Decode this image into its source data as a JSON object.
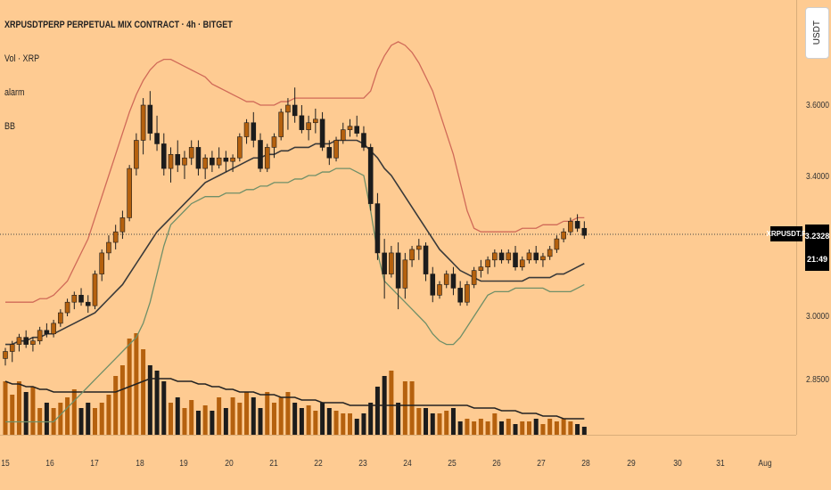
{
  "legend": {
    "title": "XRPUSDTPERP PERPETUAL MIX CONTRACT · 4h · BITGET",
    "vol": "Vol · XRP",
    "alarm": "alarm",
    "bb": "BB"
  },
  "axis": {
    "currency": "USDT",
    "price_labels": [
      "3.6000",
      "3.4000",
      "3.0000",
      "2.8500"
    ],
    "symbol_tag": "XRPUSDT.P",
    "last_price": "3.2328",
    "countdown": "21:49",
    "date_labels": [
      "15",
      "16",
      "17",
      "18",
      "19",
      "20",
      "21",
      "22",
      "23",
      "24",
      "25",
      "26",
      "27",
      "28",
      "29",
      "30",
      "31",
      "Aug"
    ]
  },
  "colors": {
    "background": "#fecb92",
    "bull": "#b5610e",
    "bear": "#1c1c1c",
    "bb_upper": "#d06a58",
    "bb_lower": "#6f8f68",
    "bb_basis": "#3a3a3a"
  },
  "chart_data": {
    "type": "candlestick",
    "timeframe": "4h",
    "y_ticks": [
      3.6,
      3.4,
      3.0,
      2.85
    ],
    "last_price": 3.2328,
    "x_ticks": [
      "15",
      "16",
      "17",
      "18",
      "19",
      "20",
      "21",
      "22",
      "23",
      "24",
      "25",
      "26",
      "27",
      "28",
      "29",
      "30",
      "31",
      "Aug"
    ],
    "candles": [
      [
        2.88,
        2.91,
        2.86,
        2.9
      ],
      [
        2.9,
        2.93,
        2.87,
        2.92
      ],
      [
        2.92,
        2.95,
        2.9,
        2.94
      ],
      [
        2.94,
        2.96,
        2.91,
        2.92
      ],
      [
        2.92,
        2.94,
        2.9,
        2.93
      ],
      [
        2.93,
        2.97,
        2.92,
        2.96
      ],
      [
        2.96,
        2.98,
        2.94,
        2.95
      ],
      [
        2.95,
        2.99,
        2.94,
        2.98
      ],
      [
        2.98,
        3.02,
        2.97,
        3.01
      ],
      [
        3.01,
        3.05,
        3.0,
        3.04
      ],
      [
        3.04,
        3.07,
        3.02,
        3.06
      ],
      [
        3.06,
        3.08,
        3.03,
        3.04
      ],
      [
        3.04,
        3.06,
        3.01,
        3.03
      ],
      [
        3.03,
        3.13,
        3.02,
        3.12
      ],
      [
        3.12,
        3.19,
        3.1,
        3.18
      ],
      [
        3.18,
        3.23,
        3.16,
        3.21
      ],
      [
        3.21,
        3.26,
        3.19,
        3.24
      ],
      [
        3.24,
        3.3,
        3.22,
        3.28
      ],
      [
        3.28,
        3.43,
        3.27,
        3.42
      ],
      [
        3.42,
        3.52,
        3.4,
        3.5
      ],
      [
        3.5,
        3.62,
        3.46,
        3.6
      ],
      [
        3.6,
        3.64,
        3.5,
        3.52
      ],
      [
        3.52,
        3.57,
        3.47,
        3.49
      ],
      [
        3.49,
        3.52,
        3.4,
        3.42
      ],
      [
        3.42,
        3.48,
        3.38,
        3.46
      ],
      [
        3.46,
        3.5,
        3.41,
        3.43
      ],
      [
        3.43,
        3.47,
        3.39,
        3.45
      ],
      [
        3.45,
        3.5,
        3.43,
        3.48
      ],
      [
        3.48,
        3.5,
        3.4,
        3.42
      ],
      [
        3.42,
        3.46,
        3.39,
        3.45
      ],
      [
        3.45,
        3.47,
        3.41,
        3.43
      ],
      [
        3.43,
        3.48,
        3.42,
        3.45
      ],
      [
        3.45,
        3.47,
        3.41,
        3.44
      ],
      [
        3.44,
        3.46,
        3.41,
        3.45
      ],
      [
        3.45,
        3.52,
        3.44,
        3.51
      ],
      [
        3.51,
        3.56,
        3.49,
        3.55
      ],
      [
        3.55,
        3.58,
        3.48,
        3.5
      ],
      [
        3.5,
        3.52,
        3.41,
        3.42
      ],
      [
        3.42,
        3.49,
        3.41,
        3.48
      ],
      [
        3.48,
        3.52,
        3.45,
        3.51
      ],
      [
        3.51,
        3.59,
        3.5,
        3.58
      ],
      [
        3.58,
        3.62,
        3.53,
        3.6
      ],
      [
        3.6,
        3.65,
        3.55,
        3.57
      ],
      [
        3.57,
        3.6,
        3.52,
        3.53
      ],
      [
        3.53,
        3.57,
        3.5,
        3.55
      ],
      [
        3.55,
        3.59,
        3.52,
        3.56
      ],
      [
        3.56,
        3.58,
        3.47,
        3.48
      ],
      [
        3.48,
        3.5,
        3.43,
        3.45
      ],
      [
        3.45,
        3.51,
        3.44,
        3.5
      ],
      [
        3.5,
        3.55,
        3.49,
        3.53
      ],
      [
        3.53,
        3.56,
        3.51,
        3.54
      ],
      [
        3.54,
        3.57,
        3.51,
        3.52
      ],
      [
        3.52,
        3.54,
        3.47,
        3.48
      ],
      [
        3.48,
        3.49,
        3.3,
        3.32
      ],
      [
        3.32,
        3.35,
        3.16,
        3.18
      ],
      [
        3.18,
        3.22,
        3.05,
        3.12
      ],
      [
        3.12,
        3.2,
        3.11,
        3.18
      ],
      [
        3.18,
        3.21,
        3.02,
        3.08
      ],
      [
        3.08,
        3.18,
        3.05,
        3.16
      ],
      [
        3.16,
        3.2,
        3.14,
        3.19
      ],
      [
        3.19,
        3.22,
        3.16,
        3.2
      ],
      [
        3.2,
        3.21,
        3.1,
        3.12
      ],
      [
        3.12,
        3.14,
        3.04,
        3.06
      ],
      [
        3.06,
        3.1,
        3.05,
        3.09
      ],
      [
        3.09,
        3.13,
        3.08,
        3.12
      ],
      [
        3.12,
        3.14,
        3.06,
        3.08
      ],
      [
        3.08,
        3.1,
        3.03,
        3.04
      ],
      [
        3.04,
        3.1,
        3.03,
        3.09
      ],
      [
        3.09,
        3.14,
        3.08,
        3.13
      ],
      [
        3.13,
        3.16,
        3.11,
        3.14
      ],
      [
        3.14,
        3.17,
        3.12,
        3.16
      ],
      [
        3.16,
        3.19,
        3.14,
        3.18
      ],
      [
        3.18,
        3.19,
        3.15,
        3.16
      ],
      [
        3.16,
        3.19,
        3.15,
        3.18
      ],
      [
        3.18,
        3.2,
        3.13,
        3.14
      ],
      [
        3.14,
        3.17,
        3.13,
        3.16
      ],
      [
        3.16,
        3.19,
        3.15,
        3.18
      ],
      [
        3.18,
        3.2,
        3.15,
        3.16
      ],
      [
        3.16,
        3.18,
        3.14,
        3.17
      ],
      [
        3.17,
        3.2,
        3.16,
        3.19
      ],
      [
        3.19,
        3.23,
        3.18,
        3.22
      ],
      [
        3.22,
        3.25,
        3.21,
        3.24
      ],
      [
        3.24,
        3.28,
        3.23,
        3.27
      ],
      [
        3.27,
        3.29,
        3.24,
        3.25
      ],
      [
        3.25,
        3.27,
        3.22,
        3.23
      ]
    ],
    "volume": [
      20,
      15,
      20,
      16,
      18,
      10,
      12,
      10,
      12,
      14,
      17,
      10,
      12,
      10,
      12,
      15,
      22,
      26,
      36,
      38,
      32,
      26,
      24,
      20,
      12,
      14,
      10,
      13,
      9,
      11,
      9,
      14,
      10,
      14,
      12,
      16,
      14,
      10,
      16,
      12,
      14,
      16,
      12,
      10,
      11,
      9,
      12,
      10,
      9,
      8,
      8,
      6,
      8,
      12,
      18,
      22,
      24,
      12,
      20,
      20,
      10,
      10,
      8,
      8,
      9,
      10,
      5,
      6,
      5,
      6,
      5,
      8,
      5,
      6,
      4,
      5,
      5,
      6,
      4,
      6,
      5,
      6,
      5,
      4,
      3
    ],
    "bb_basis": [
      2.92,
      2.92,
      2.93,
      2.93,
      2.94,
      2.94,
      2.95,
      2.95,
      2.96,
      2.97,
      2.98,
      2.99,
      3.0,
      3.01,
      3.03,
      3.05,
      3.07,
      3.09,
      3.12,
      3.15,
      3.18,
      3.21,
      3.24,
      3.26,
      3.28,
      3.3,
      3.32,
      3.34,
      3.36,
      3.38,
      3.39,
      3.4,
      3.41,
      3.42,
      3.43,
      3.44,
      3.45,
      3.45,
      3.46,
      3.46,
      3.47,
      3.47,
      3.48,
      3.48,
      3.48,
      3.49,
      3.49,
      3.49,
      3.5,
      3.5,
      3.5,
      3.5,
      3.49,
      3.47,
      3.45,
      3.42,
      3.4,
      3.37,
      3.34,
      3.31,
      3.28,
      3.25,
      3.22,
      3.19,
      3.17,
      3.15,
      3.13,
      3.12,
      3.11,
      3.1,
      3.1,
      3.1,
      3.1,
      3.1,
      3.1,
      3.1,
      3.11,
      3.11,
      3.11,
      3.11,
      3.12,
      3.12,
      3.13,
      3.14,
      3.15
    ],
    "bb_upper": [
      3.04,
      3.04,
      3.04,
      3.04,
      3.04,
      3.05,
      3.05,
      3.06,
      3.08,
      3.1,
      3.14,
      3.18,
      3.22,
      3.28,
      3.34,
      3.4,
      3.46,
      3.52,
      3.58,
      3.63,
      3.67,
      3.7,
      3.72,
      3.73,
      3.73,
      3.72,
      3.71,
      3.7,
      3.69,
      3.68,
      3.66,
      3.65,
      3.64,
      3.63,
      3.62,
      3.61,
      3.61,
      3.6,
      3.6,
      3.6,
      3.61,
      3.61,
      3.62,
      3.62,
      3.62,
      3.62,
      3.62,
      3.62,
      3.62,
      3.62,
      3.62,
      3.62,
      3.62,
      3.64,
      3.7,
      3.74,
      3.77,
      3.78,
      3.77,
      3.75,
      3.72,
      3.68,
      3.64,
      3.58,
      3.52,
      3.46,
      3.38,
      3.3,
      3.25,
      3.24,
      3.24,
      3.24,
      3.24,
      3.24,
      3.24,
      3.25,
      3.25,
      3.25,
      3.26,
      3.26,
      3.26,
      3.27,
      3.27,
      3.28,
      3.28
    ],
    "bb_lower": [
      2.7,
      2.7,
      2.7,
      2.7,
      2.7,
      2.7,
      2.7,
      2.7,
      2.72,
      2.74,
      2.76,
      2.78,
      2.8,
      2.82,
      2.84,
      2.86,
      2.88,
      2.9,
      2.92,
      2.94,
      2.98,
      3.04,
      3.12,
      3.2,
      3.26,
      3.28,
      3.3,
      3.32,
      3.33,
      3.34,
      3.34,
      3.34,
      3.35,
      3.35,
      3.35,
      3.36,
      3.36,
      3.37,
      3.37,
      3.38,
      3.38,
      3.38,
      3.39,
      3.39,
      3.4,
      3.4,
      3.41,
      3.41,
      3.42,
      3.42,
      3.42,
      3.41,
      3.4,
      3.3,
      3.18,
      3.1,
      3.08,
      3.06,
      3.04,
      3.02,
      3.0,
      2.98,
      2.95,
      2.93,
      2.92,
      2.92,
      2.94,
      2.97,
      3.0,
      3.03,
      3.06,
      3.07,
      3.07,
      3.07,
      3.08,
      3.08,
      3.08,
      3.08,
      3.08,
      3.07,
      3.07,
      3.07,
      3.07,
      3.08,
      3.09
    ],
    "vol_ma": [
      20,
      19,
      19,
      18,
      18,
      17,
      17,
      16,
      16,
      16,
      16,
      16,
      16,
      16,
      16,
      16,
      16,
      17,
      18,
      19,
      20,
      21,
      21,
      21,
      21,
      20,
      20,
      20,
      19,
      19,
      18,
      18,
      17,
      17,
      16,
      16,
      16,
      15,
      15,
      15,
      14,
      14,
      14,
      13,
      13,
      13,
      12,
      12,
      12,
      12,
      11,
      11,
      11,
      11,
      11,
      11,
      11,
      11,
      11,
      11,
      11,
      11,
      11,
      11,
      11,
      11,
      11,
      11,
      10,
      10,
      10,
      10,
      9,
      9,
      9,
      8,
      8,
      8,
      7,
      7,
      7,
      6,
      6,
      6,
      6
    ]
  }
}
